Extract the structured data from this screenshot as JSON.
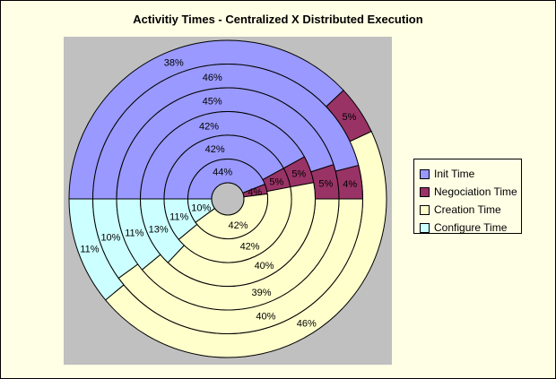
{
  "chart_data": {
    "type": "doughnut",
    "title": "Activitiy Times - Centralized X Distributed Execution",
    "categories": [
      "Init Time",
      "Negociation Time",
      "Creation Time",
      "Configure Time"
    ],
    "colors": {
      "Init Time": "#9999ff",
      "Negociation Time": "#993366",
      "Creation Time": "#ffffcc",
      "Configure Time": "#ccffff"
    },
    "legend_position": "right",
    "rings": [
      {
        "values": [
          44,
          4,
          42,
          10
        ],
        "labels": [
          "44%",
          "4%",
          "42%",
          "10%"
        ]
      },
      {
        "values": [
          42,
          5,
          42,
          11
        ],
        "labels": [
          "42%",
          "5%",
          "42%",
          "11%"
        ]
      },
      {
        "values": [
          42,
          5,
          40,
          13
        ],
        "labels": [
          "42%",
          "5%",
          "40%",
          "13%"
        ]
      },
      {
        "values": [
          45,
          5,
          39,
          11
        ],
        "labels": [
          "45%",
          "5%",
          "39%",
          "11%"
        ]
      },
      {
        "values": [
          46,
          4,
          40,
          10
        ],
        "labels": [
          "46%",
          "4%",
          "40%",
          "10%"
        ]
      },
      {
        "values": [
          38,
          5,
          46,
          11
        ],
        "labels": [
          "38%",
          "5%",
          "46%",
          "11%"
        ]
      }
    ]
  }
}
